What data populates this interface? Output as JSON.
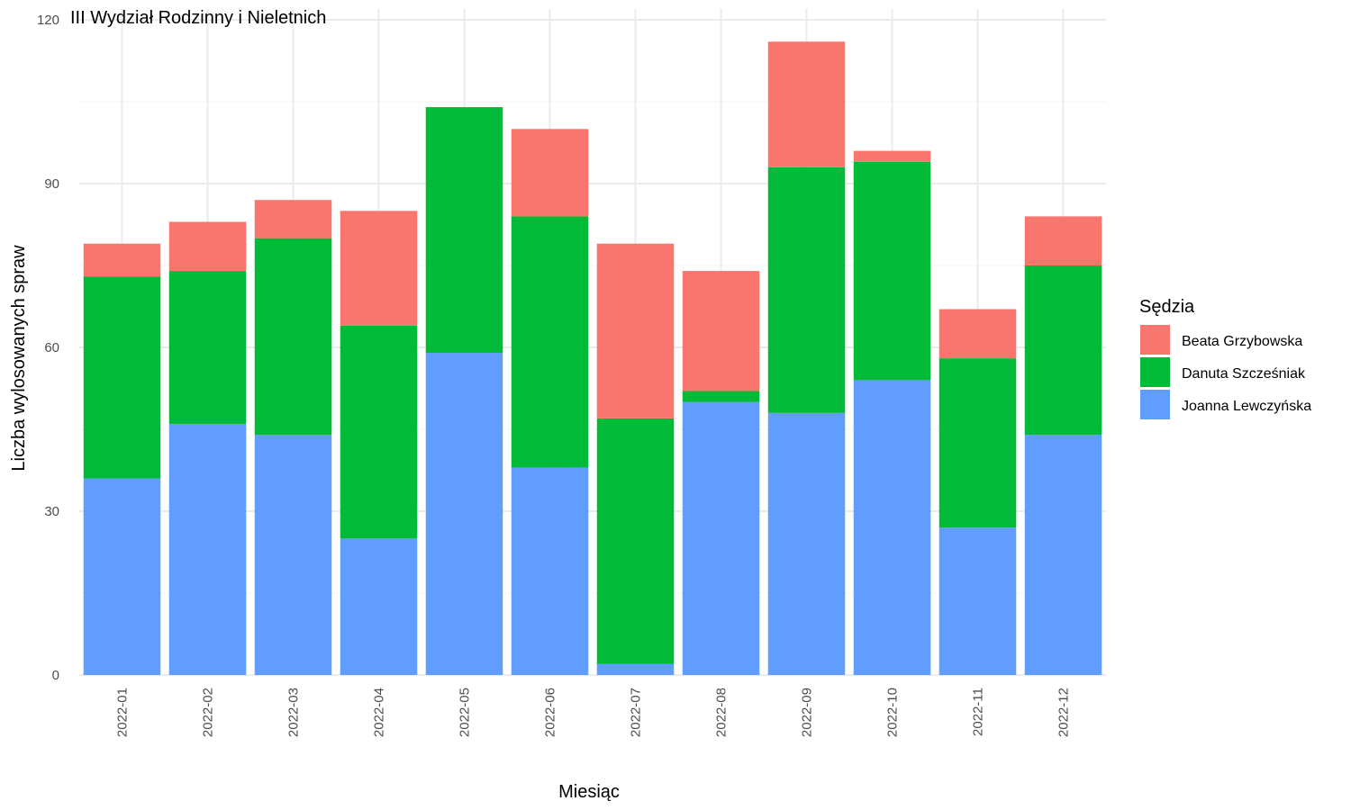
{
  "chart_data": {
    "type": "bar",
    "stacked": true,
    "title": "III Wydział Rodzinny i Nieletnich",
    "xlabel": "Miesiąc",
    "ylabel": "Liczba wylosowanych spraw",
    "ylim": [
      0,
      120
    ],
    "yticks": [
      0,
      30,
      60,
      90,
      120
    ],
    "grid": true,
    "legend_title": "Sędzia",
    "legend_position": "right",
    "categories": [
      "2022-01",
      "2022-02",
      "2022-03",
      "2022-04",
      "2022-05",
      "2022-06",
      "2022-07",
      "2022-08",
      "2022-09",
      "2022-10",
      "2022-11",
      "2022-12"
    ],
    "series": [
      {
        "name": "Joanna Lewczyńska",
        "color": "#619cff",
        "values": [
          36,
          46,
          44,
          25,
          59,
          38,
          2,
          50,
          48,
          54,
          27,
          44
        ]
      },
      {
        "name": "Danuta Szcześniak",
        "color": "#00ba38",
        "values": [
          37,
          28,
          36,
          39,
          45,
          46,
          45,
          2,
          45,
          40,
          31,
          31
        ]
      },
      {
        "name": "Beata Grzybowska",
        "color": "#f8766d",
        "values": [
          6,
          9,
          7,
          21,
          0,
          16,
          32,
          22,
          23,
          2,
          9,
          9
        ]
      }
    ],
    "legend_order": [
      "Beata Grzybowska",
      "Danuta Szcześniak",
      "Joanna Lewczyńska"
    ]
  }
}
